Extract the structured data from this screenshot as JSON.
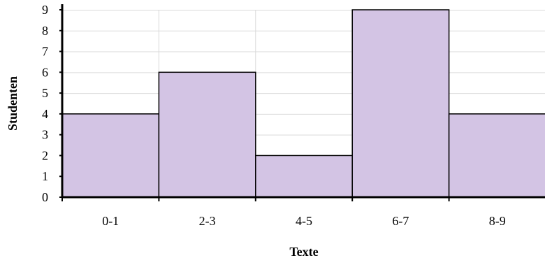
{
  "chart_data": {
    "type": "bar",
    "categories": [
      "0-1",
      "2-3",
      "4-5",
      "6-7",
      "8-9"
    ],
    "values": [
      4,
      6,
      2,
      9,
      4
    ],
    "xlabel": "Texte",
    "ylabel": "Studenten",
    "ylim": [
      0,
      9
    ],
    "yticks": [
      0,
      1,
      2,
      3,
      4,
      5,
      6,
      7,
      8,
      9
    ],
    "grid": true,
    "colors": {
      "bar_fill": "#d3c4e4",
      "bar_stroke": "#000000",
      "grid": "#d9d9d9"
    }
  }
}
